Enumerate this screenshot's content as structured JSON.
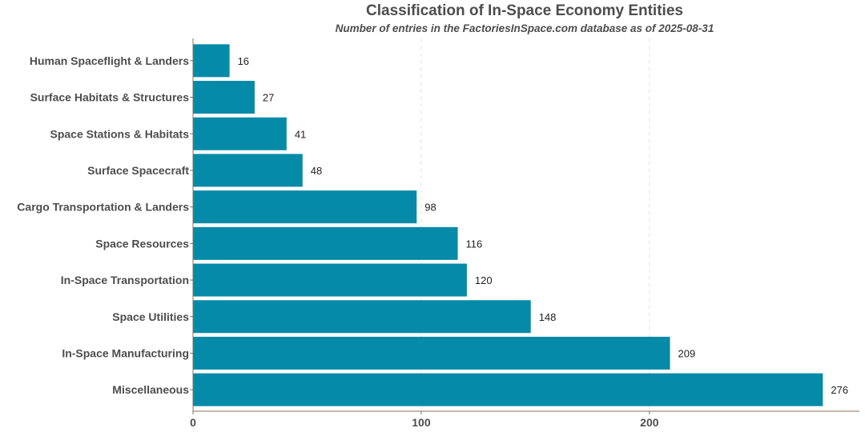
{
  "chart_data": {
    "type": "bar",
    "orientation": "horizontal",
    "title": "Classification of In-Space Economy Entities",
    "subtitle": "Number of entries in the FactoriesInSpace.com database as of 2025-08-31",
    "xlabel": "",
    "ylabel": "",
    "categories": [
      "Human Spaceflight & Landers",
      "Surface Habitats & Structures",
      "Space Stations & Habitats",
      "Surface Spacecraft",
      "Cargo Transportation & Landers",
      "Space Resources",
      "In-Space Transportation",
      "Space Utilities",
      "In-Space Manufacturing",
      "Miscellaneous"
    ],
    "values": [
      16,
      27,
      41,
      48,
      98,
      116,
      120,
      148,
      209,
      276
    ],
    "xlim": [
      0,
      292
    ],
    "xticks": [
      "0",
      "100",
      "200"
    ],
    "grid": "vertical dashed",
    "data_labels": true,
    "colors": {
      "bar": "#058aa8",
      "axis": "#8b6f5a",
      "grid": "#e6e0dc"
    }
  }
}
